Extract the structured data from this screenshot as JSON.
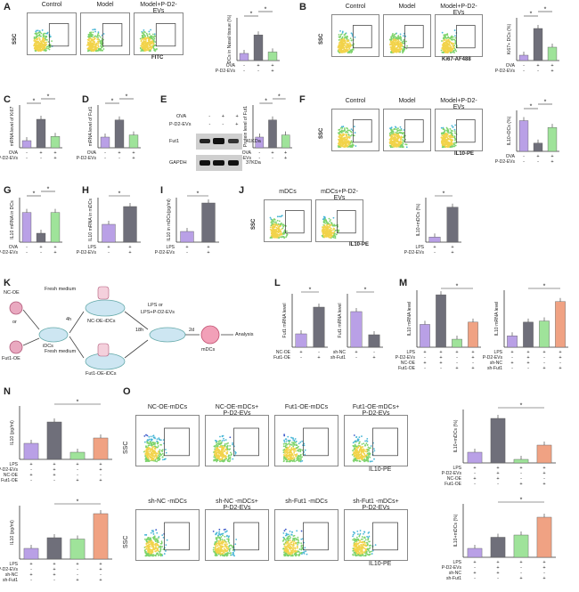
{
  "panels": {
    "A": {
      "label": "A",
      "flow_titles": [
        "Control",
        "Model",
        "Model+P-D2-EVs"
      ],
      "flow_x_label": "FITC",
      "flow_y_label": "SSC",
      "chart_ylabel": "DCs in Nasal tissue (%)",
      "row_labels": [
        "OVA",
        "P-D2-EVs"
      ],
      "signs": [
        [
          "-",
          "+",
          "+"
        ],
        [
          "-",
          "-",
          "+"
        ]
      ],
      "ymax": 15
    },
    "B": {
      "label": "B",
      "flow_titles": [
        "Control",
        "Model",
        "Model+P-D2-EVs"
      ],
      "flow_x_label": "Ki67-AF488",
      "flow_y_label": "SSC",
      "chart_ylabel": "Ki67+ DCs (%)",
      "row_labels": [
        "OVA",
        "P-D2-EVs"
      ],
      "signs": [
        [
          "-",
          "+",
          "+"
        ],
        [
          "-",
          "-",
          "+"
        ]
      ]
    },
    "C": {
      "label": "C",
      "ylabel": "mRNA level of Ki67",
      "row_labels": [
        "OVA",
        "P-D2-EVs"
      ],
      "signs": [
        [
          "-",
          "+",
          "+"
        ],
        [
          "-",
          "-",
          "+"
        ]
      ]
    },
    "D": {
      "label": "D",
      "ylabel": "mRNA level of Fut1",
      "row_labels": [
        "OVA",
        "P-D2-EVs"
      ],
      "signs": [
        [
          "-",
          "+",
          "+"
        ],
        [
          "-",
          "-",
          "+"
        ]
      ]
    },
    "E": {
      "label": "E",
      "wb_rows": [
        "OVA",
        "P-D2-EVs"
      ],
      "wb_signs": [
        [
          "-",
          "+",
          "+"
        ],
        [
          "-",
          "-",
          "+"
        ]
      ],
      "bands": [
        {
          "name": "Fut1",
          "size": "41KDa"
        },
        {
          "name": "GAPDH",
          "size": "37KDa"
        }
      ],
      "ylabel": "Protein level of Fut1",
      "row_labels": [
        "OVA",
        "P-D2-EVs"
      ],
      "signs": [
        [
          "-",
          "+",
          "+"
        ],
        [
          "-",
          "-",
          "+"
        ]
      ]
    },
    "F": {
      "label": "F",
      "flow_titles": [
        "Control",
        "Model",
        "Model+P-D2-EVs"
      ],
      "flow_x_label": "IL10-PE",
      "flow_y_label": "SSC",
      "chart_ylabel": "IL10+DCs (%)",
      "row_labels": [
        "OVA",
        "P-D2-EVs"
      ],
      "signs": [
        [
          "-",
          "+",
          "+"
        ],
        [
          "-",
          "-",
          "+"
        ]
      ]
    },
    "G": {
      "label": "G",
      "ylabel": "IL10 mRNA in DCs",
      "row_labels": [
        "OVA",
        "P-D2-EVs"
      ],
      "signs": [
        [
          "-",
          "+",
          "+"
        ],
        [
          "-",
          "-",
          "+"
        ]
      ]
    },
    "H": {
      "label": "H",
      "ylabel": "IL10 mRNA in mDCs",
      "row_labels": [
        "LPS",
        "P-D2-EVs"
      ],
      "signs": [
        [
          "+",
          "+"
        ],
        [
          "-",
          "+"
        ]
      ]
    },
    "I": {
      "label": "I",
      "ylabel": "IL10 in mDCs(pg/ml)",
      "row_labels": [
        "LPS",
        "P-D2-EVs"
      ],
      "signs": [
        [
          "+",
          "+"
        ],
        [
          "-",
          "+"
        ]
      ]
    },
    "J": {
      "label": "J",
      "flow_titles": [
        "mDCs",
        "mDCs+P-D2-EVs"
      ],
      "flow_x_label": "IL10-PE",
      "flow_y_label": "SSC",
      "chart_ylabel": "IL10+mDCs (%)",
      "row_labels": [
        "LPS",
        "P-D2-EVs"
      ],
      "signs": [
        [
          "+",
          "+"
        ],
        [
          "-",
          "+"
        ]
      ]
    },
    "K": {
      "label": "K",
      "nc_oe": "NC-OE",
      "or": "or",
      "fut1_oe": "Fut1-OE",
      "fresh_medium_1": "Fresh medium",
      "fresh_medium_2": "Fresh medium",
      "idcs": "iDCs",
      "t1": "4h",
      "t2": "18h",
      "t3": "2d",
      "nc_oe_idcs": "NC-OE-iDCs",
      "fut1_oe_idcs": "Fut1-OE-iDCs",
      "lps": "LPS",
      "lps_or": "or",
      "lps_evs": "LPS+P-D2-EVs",
      "mdcs": "mDCs",
      "analysis": "Analysis"
    },
    "L": {
      "label": "L",
      "ylabel_1": "Fut1 mRNA level",
      "ylabel_2": "Fut1 mRNA level",
      "row_labels_1": [
        "NC-OE",
        "Fut1-OE"
      ],
      "signs_1": [
        [
          "+",
          "-"
        ],
        [
          "-",
          "+"
        ]
      ],
      "row_labels_2": [
        "sh-NC",
        "sh-Fut1"
      ],
      "signs_2": [
        [
          "+",
          "-"
        ],
        [
          "-",
          "+"
        ]
      ]
    },
    "M": {
      "label": "M",
      "ylabel_1": "IL10 mRNA level",
      "ylabel_2": "IL10 mRNA level",
      "row_labels_1": [
        "LPS",
        "P-D2-EVs",
        "NC-OE",
        "Fut1-OE"
      ],
      "signs_1": [
        [
          "+",
          "+",
          "+",
          "+"
        ],
        [
          "-",
          "+",
          "-",
          "+"
        ],
        [
          "+",
          "+",
          "-",
          "-"
        ],
        [
          "-",
          "-",
          "+",
          "+"
        ]
      ],
      "row_labels_2": [
        "LPS",
        "P-D2-EVs",
        "sh-NC",
        "sh-Fut1"
      ],
      "signs_2": [
        [
          "+",
          "+",
          "+",
          "+"
        ],
        [
          "-",
          "+",
          "-",
          "+"
        ],
        [
          "+",
          "+",
          "-",
          "-"
        ],
        [
          "-",
          "-",
          "+",
          "+"
        ]
      ]
    },
    "N": {
      "label": "N",
      "ylabel_1": "IL10 (pg/ml)",
      "ylabel_2": "IL10 (pg/ml)",
      "row_labels_1": [
        "LPS",
        "P-D2-EVs",
        "NC-OE",
        "Fut1-OE"
      ],
      "signs_1": [
        [
          "+",
          "+",
          "+",
          "+"
        ],
        [
          "-",
          "+",
          "-",
          "+"
        ],
        [
          "+",
          "+",
          "-",
          "-"
        ],
        [
          "-",
          "-",
          "+",
          "+"
        ]
      ],
      "row_labels_2": [
        "LPS",
        "P-D2-EVs",
        "sh-NC",
        "sh-Fut1"
      ],
      "signs_2": [
        [
          "+",
          "+",
          "+",
          "+"
        ],
        [
          "-",
          "+",
          "-",
          "+"
        ],
        [
          "+",
          "+",
          "-",
          "-"
        ],
        [
          "-",
          "-",
          "+",
          "+"
        ]
      ]
    },
    "O": {
      "label": "O",
      "flow_titles_1": [
        "NC-OE-mDCs",
        "NC-OE-mDCs+\nP-D2-EVs",
        "Fut1-OE-mDCs",
        "Fut1-OE-mDCs+\nP-D2-EVs"
      ],
      "flow_titles_2": [
        "sh-NC -mDCs",
        "sh-NC -mDCs+\nP-D2-EVs",
        "sh-Fut1 -mDCs",
        "sh-Fut1 -mDCs+\nP-D2-EVs"
      ],
      "flow_x_label": "IL10-PE",
      "flow_y_label": "SSC",
      "chart_ylabel_1": "IL10+mDCs (%)",
      "chart_ylabel_2": "IL10+mDCs (%)",
      "row_labels_1": [
        "LPS",
        "P-D2-EVs",
        "NC-OE",
        "Fut1-OE"
      ],
      "signs_1": [
        [
          "+",
          "+",
          "+",
          "+"
        ],
        [
          "-",
          "+",
          "-",
          "+"
        ],
        [
          "+",
          "+",
          "-",
          "-"
        ],
        [
          "-",
          "-",
          "+",
          "+"
        ]
      ],
      "row_labels_2": [
        "LPS",
        "P-D2-EVs",
        "sh-NC",
        "sh-Fut1"
      ],
      "signs_2": [
        [
          "+",
          "+",
          "+",
          "+"
        ],
        [
          "-",
          "+",
          "-",
          "+"
        ],
        [
          "+",
          "+",
          "-",
          "-"
        ],
        [
          "-",
          "-",
          "+",
          "+"
        ]
      ]
    }
  },
  "colors": {
    "purple": "#b9a0e6",
    "green": "#9fe39a",
    "gray": "#6f6f7a",
    "orange": "#f0a283",
    "blue_dot": "#3d5ac8"
  },
  "chart_data": [
    {
      "id": "A",
      "type": "bar",
      "categories": [
        "1",
        "2",
        "3"
      ],
      "values": [
        2.5,
        9,
        3
      ],
      "ylim": [
        0,
        15
      ],
      "colors": [
        "purple",
        "gray",
        "green"
      ],
      "sig": [
        [
          0,
          1
        ],
        [
          1,
          2
        ]
      ]
    },
    {
      "id": "B",
      "type": "bar",
      "categories": [
        "1",
        "2",
        "3"
      ],
      "values": [
        10,
        60,
        25
      ],
      "ylim": [
        0,
        80
      ],
      "colors": [
        "purple",
        "gray",
        "green"
      ],
      "sig": [
        [
          0,
          1
        ],
        [
          1,
          2
        ]
      ]
    },
    {
      "id": "C",
      "type": "bar",
      "categories": [
        "1",
        "2",
        "3"
      ],
      "values": [
        1,
        4,
        1.6
      ],
      "ylim": [
        0,
        6
      ],
      "colors": [
        "purple",
        "gray",
        "green"
      ],
      "sig": [
        [
          0,
          1
        ],
        [
          1,
          2
        ]
      ]
    },
    {
      "id": "D",
      "type": "bar",
      "categories": [
        "1",
        "2",
        "3"
      ],
      "values": [
        1,
        2.6,
        1.2
      ],
      "ylim": [
        0,
        4
      ],
      "colors": [
        "purple",
        "gray",
        "green"
      ],
      "sig": [
        [
          0,
          1
        ],
        [
          1,
          2
        ]
      ]
    },
    {
      "id": "E",
      "type": "bar",
      "categories": [
        "1",
        "2",
        "3"
      ],
      "values": [
        1,
        2.6,
        1.2
      ],
      "ylim": [
        0,
        4
      ],
      "colors": [
        "purple",
        "gray",
        "green"
      ],
      "sig": [
        [
          0,
          1
        ],
        [
          1,
          2
        ]
      ]
    },
    {
      "id": "F",
      "type": "bar",
      "categories": [
        "1",
        "2",
        "3"
      ],
      "values": [
        45,
        12,
        35
      ],
      "ylim": [
        0,
        60
      ],
      "colors": [
        "purple",
        "gray",
        "green"
      ],
      "sig": [
        [
          0,
          1
        ],
        [
          1,
          2
        ]
      ]
    },
    {
      "id": "G",
      "type": "bar",
      "categories": [
        "1",
        "2",
        "3"
      ],
      "values": [
        1,
        0.3,
        1
      ],
      "ylim": [
        0,
        1.5
      ],
      "colors": [
        "purple",
        "gray",
        "green"
      ],
      "sig": [
        [
          0,
          1
        ],
        [
          1,
          2
        ]
      ]
    },
    {
      "id": "H",
      "type": "bar",
      "categories": [
        "1",
        "2"
      ],
      "values": [
        1,
        2
      ],
      "ylim": [
        0,
        2.5
      ],
      "colors": [
        "purple",
        "gray"
      ],
      "sig": [
        [
          0,
          1
        ]
      ]
    },
    {
      "id": "I",
      "type": "bar",
      "categories": [
        "1",
        "2"
      ],
      "values": [
        60,
        220
      ],
      "ylim": [
        0,
        250
      ],
      "colors": [
        "purple",
        "gray"
      ],
      "sig": [
        [
          0,
          1
        ]
      ]
    },
    {
      "id": "J",
      "type": "bar",
      "categories": [
        "1",
        "2"
      ],
      "values": [
        8,
        55
      ],
      "ylim": [
        0,
        70
      ],
      "colors": [
        "purple",
        "gray"
      ],
      "sig": [
        [
          0,
          1
        ]
      ]
    },
    {
      "id": "L1",
      "type": "bar",
      "categories": [
        "1",
        "2"
      ],
      "values": [
        1,
        3
      ],
      "ylim": [
        0,
        4
      ],
      "colors": [
        "purple",
        "gray"
      ],
      "sig": [
        [
          0,
          1
        ]
      ]
    },
    {
      "id": "L2",
      "type": "bar",
      "categories": [
        "1",
        "2"
      ],
      "values": [
        1,
        0.35
      ],
      "ylim": [
        0,
        1.5
      ],
      "colors": [
        "purple",
        "gray"
      ],
      "sig": [
        [
          0,
          1
        ]
      ]
    },
    {
      "id": "M1",
      "type": "bar",
      "categories": [
        "1",
        "2",
        "3",
        "4"
      ],
      "values": [
        1,
        2.3,
        0.35,
        1.1
      ],
      "ylim": [
        0,
        2.5
      ],
      "colors": [
        "purple",
        "gray",
        "green",
        "orange"
      ],
      "sig": [
        [
          1,
          3
        ]
      ]
    },
    {
      "id": "M2",
      "type": "bar",
      "categories": [
        "1",
        "2",
        "3",
        "4"
      ],
      "values": [
        1,
        2.2,
        2.3,
        4
      ],
      "ylim": [
        0,
        5
      ],
      "colors": [
        "purple",
        "gray",
        "green",
        "orange"
      ],
      "sig": [
        [
          1,
          3
        ]
      ]
    },
    {
      "id": "N1",
      "type": "bar",
      "categories": [
        "1",
        "2",
        "3",
        "4"
      ],
      "values": [
        90,
        210,
        40,
        120
      ],
      "ylim": [
        0,
        300
      ],
      "colors": [
        "purple",
        "gray",
        "green",
        "orange"
      ],
      "sig": [
        [
          1,
          3
        ]
      ]
    },
    {
      "id": "N2",
      "type": "bar",
      "categories": [
        "1",
        "2",
        "3",
        "4"
      ],
      "values": [
        80,
        160,
        150,
        340
      ],
      "ylim": [
        0,
        400
      ],
      "colors": [
        "purple",
        "gray",
        "green",
        "orange"
      ],
      "sig": [
        [
          1,
          3
        ]
      ]
    },
    {
      "id": "O1",
      "type": "bar",
      "categories": [
        "1",
        "2",
        "3",
        "4"
      ],
      "values": [
        12,
        50,
        4,
        20
      ],
      "ylim": [
        0,
        60
      ],
      "colors": [
        "purple",
        "gray",
        "green",
        "orange"
      ],
      "sig": [
        [
          1,
          3
        ]
      ]
    },
    {
      "id": "O2",
      "type": "bar",
      "categories": [
        "1",
        "2",
        "3",
        "4"
      ],
      "values": [
        20,
        45,
        50,
        90
      ],
      "ylim": [
        0,
        120
      ],
      "colors": [
        "purple",
        "gray",
        "green",
        "orange"
      ],
      "sig": [
        [
          1,
          3
        ]
      ]
    }
  ]
}
